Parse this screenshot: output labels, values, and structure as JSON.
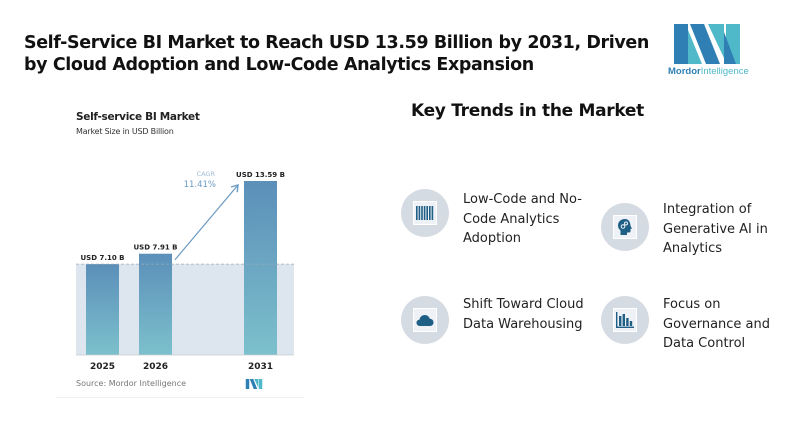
{
  "headline": "Self-Service BI Market to Reach USD 13.59 Billion by 2031, Driven by Cloud Adoption and Low-Code Analytics Expansion",
  "logo": {
    "brand_bold": "Mordor",
    "brand_light": "Intelligence",
    "colors": {
      "dark": "#2f7fb5",
      "light": "#4fb8c9"
    }
  },
  "chart_data": {
    "type": "bar",
    "title": "Self-service BI Market",
    "subtitle": "Market Size in USD Billion",
    "categories": [
      "2025",
      "2026",
      "2031"
    ],
    "values": [
      7.1,
      7.91,
      13.59
    ],
    "data_labels": [
      "USD 7.10 B",
      "USD 7.91 B",
      "USD 13.59 B"
    ],
    "unit": "USD Billion",
    "annotation": {
      "label": "CAGR",
      "value": "11.41%"
    },
    "reference_line_value": 7.1,
    "ylim": [
      0,
      13.59
    ],
    "grid": false,
    "legend": "none",
    "source": "Source: Mordor Intelligence",
    "colors": {
      "bar_top": "#5b8fb9",
      "bar_bottom": "#7cc0cc",
      "band": "#dde6ee",
      "arrow": "#6b9ac3"
    }
  },
  "trends": {
    "title": "Key Trends in the Market",
    "items": [
      {
        "icon": "barcode-icon",
        "label": "Low-Code and No-Code Analytics Adoption"
      },
      {
        "icon": "ai-head-icon",
        "label": "Integration of Generative AI in Analytics"
      },
      {
        "icon": "cloud-icon",
        "label": "Shift Toward Cloud Data Warehousing"
      },
      {
        "icon": "bar-chart-icon",
        "label": "Focus on Governance and Data Control"
      }
    ],
    "icon_color": "#1f5f86"
  }
}
